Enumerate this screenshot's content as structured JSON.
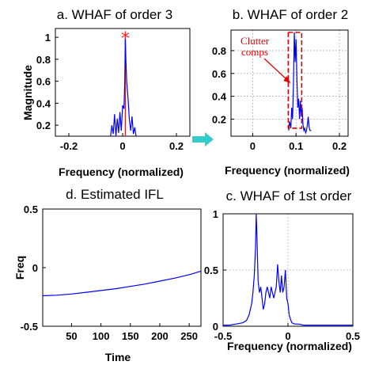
{
  "arrow_color": "#33cccc",
  "series_color": "#0000ff",
  "annotation_color": "#e00000",
  "chart_data": [
    {
      "id": "a",
      "type": "line",
      "title": "a. WHAF of order 3",
      "xlabel": "Frequency (normalized)",
      "ylabel": "Magnitude",
      "xlim": [
        -0.25,
        0.25
      ],
      "ylim": [
        0.1,
        1.08
      ],
      "xticks": [
        -0.2,
        0,
        0.2
      ],
      "xtick_labels": [
        "-0.2",
        "0",
        "0.2"
      ],
      "yticks": [
        0.2,
        0.4,
        0.6,
        0.8,
        1
      ],
      "ytick_labels": [
        "0.2",
        "0.4",
        "0.6",
        "0.8",
        "1"
      ],
      "grid": false,
      "marker": {
        "x": 0.01,
        "y": 1.0,
        "symbol": "*",
        "color": "#ff2020"
      },
      "vline_x": 0.01,
      "series": [
        {
          "x": [
            -0.045,
            -0.04,
            -0.035,
            -0.03,
            -0.025,
            -0.02,
            -0.015,
            -0.01,
            -0.005,
            0,
            0.005,
            0.008,
            0.01,
            0.012,
            0.015,
            0.02,
            0.025,
            0.03,
            0.035,
            0.04,
            0.045,
            0.05
          ],
          "y": [
            0.1,
            0.2,
            0.12,
            0.3,
            0.1,
            0.26,
            0.13,
            0.32,
            0.15,
            0.38,
            0.35,
            0.6,
            1.0,
            0.8,
            0.6,
            0.45,
            0.25,
            0.15,
            0.28,
            0.12,
            0.18,
            0.1
          ]
        }
      ]
    },
    {
      "id": "b",
      "type": "line",
      "title": "b. WHAF of order 2",
      "xlabel": "Frequency (normalized)",
      "ylabel": "",
      "xlim": [
        -0.05,
        0.22
      ],
      "ylim": [
        0.05,
        0.98
      ],
      "xticks": [
        0,
        0.1,
        0.2
      ],
      "xtick_labels": [
        "0",
        "0.1",
        "0.2"
      ],
      "yticks": [
        0.2,
        0.4,
        0.6,
        0.8
      ],
      "ytick_labels": [
        "0.2",
        "0.4",
        "0.6",
        "0.8"
      ],
      "grid": true,
      "annotation": {
        "lines": [
          "Clutter",
          "comps"
        ],
        "box_x": [
          0.082,
          0.113
        ],
        "box_y": [
          0.12,
          0.96
        ]
      },
      "series": [
        {
          "x": [
            0.083,
            0.085,
            0.088,
            0.09,
            0.092,
            0.094,
            0.096,
            0.098,
            0.1,
            0.102,
            0.104,
            0.106,
            0.108,
            0.11,
            0.112,
            0.114,
            0.116,
            0.118,
            0.12,
            0.122,
            0.124,
            0.126,
            0.128,
            0.13,
            0.132,
            0.135
          ],
          "y": [
            0.1,
            0.18,
            0.12,
            0.3,
            0.2,
            0.5,
            0.96,
            0.7,
            0.9,
            0.55,
            0.3,
            0.38,
            0.2,
            0.36,
            0.22,
            0.3,
            0.15,
            0.1,
            0.12,
            0.08,
            0.1,
            0.15,
            0.22,
            0.13,
            0.1,
            0.1
          ]
        }
      ]
    },
    {
      "id": "d",
      "type": "line",
      "title": "d. Estimated IFL",
      "xlabel": "Time",
      "ylabel": "Freq",
      "xlim": [
        1,
        270
      ],
      "ylim": [
        -0.5,
        0.5
      ],
      "xticks": [
        50,
        100,
        150,
        200,
        250
      ],
      "xtick_labels": [
        "50",
        "100",
        "150",
        "200",
        "250"
      ],
      "yticks": [
        -0.5,
        0,
        0.5
      ],
      "ytick_labels": [
        "-0.5",
        "0",
        "0.5"
      ],
      "grid": false,
      "series": [
        {
          "x": [
            1,
            25,
            50,
            75,
            100,
            125,
            150,
            175,
            200,
            225,
            250,
            270
          ],
          "y": [
            -0.24,
            -0.235,
            -0.225,
            -0.21,
            -0.195,
            -0.18,
            -0.16,
            -0.14,
            -0.115,
            -0.09,
            -0.06,
            -0.03
          ]
        }
      ]
    },
    {
      "id": "c",
      "type": "line",
      "title": "c. WHAF of 1st order",
      "xlabel": "Frequency (normalized)",
      "ylabel": "",
      "xlim": [
        -0.5,
        0.5
      ],
      "ylim": [
        0,
        1
      ],
      "xticks": [
        -0.5,
        0,
        0.5
      ],
      "xtick_labels": [
        "-0.5",
        "0",
        "0.5"
      ],
      "yticks": [
        0,
        0.5,
        1
      ],
      "ytick_labels": [
        "0",
        "0.5",
        "1"
      ],
      "grid": true,
      "series": [
        {
          "x": [
            -0.5,
            -0.45,
            -0.4,
            -0.35,
            -0.32,
            -0.3,
            -0.28,
            -0.27,
            -0.26,
            -0.25,
            -0.245,
            -0.24,
            -0.235,
            -0.23,
            -0.22,
            -0.21,
            -0.2,
            -0.19,
            -0.18,
            -0.17,
            -0.16,
            -0.15,
            -0.14,
            -0.13,
            -0.12,
            -0.11,
            -0.1,
            -0.09,
            -0.08,
            -0.07,
            -0.06,
            -0.05,
            -0.04,
            -0.03,
            -0.02,
            -0.01,
            0,
            0.01,
            0.02,
            0.03,
            0.05,
            0.08,
            0.12,
            0.2,
            0.3,
            0.4,
            0.5
          ],
          "y": [
            0.01,
            0.01,
            0.02,
            0.03,
            0.05,
            0.1,
            0.2,
            0.3,
            0.45,
            0.7,
            1.0,
            0.85,
            0.6,
            0.4,
            0.3,
            0.35,
            0.25,
            0.15,
            0.2,
            0.3,
            0.35,
            0.3,
            0.25,
            0.35,
            0.3,
            0.25,
            0.3,
            0.35,
            0.55,
            0.4,
            0.3,
            0.45,
            0.3,
            0.35,
            0.5,
            0.25,
            0.2,
            0.1,
            0.06,
            0.03,
            0.02,
            0.02,
            0.01,
            0.01,
            0.01,
            0.01,
            0.01
          ]
        }
      ]
    }
  ]
}
